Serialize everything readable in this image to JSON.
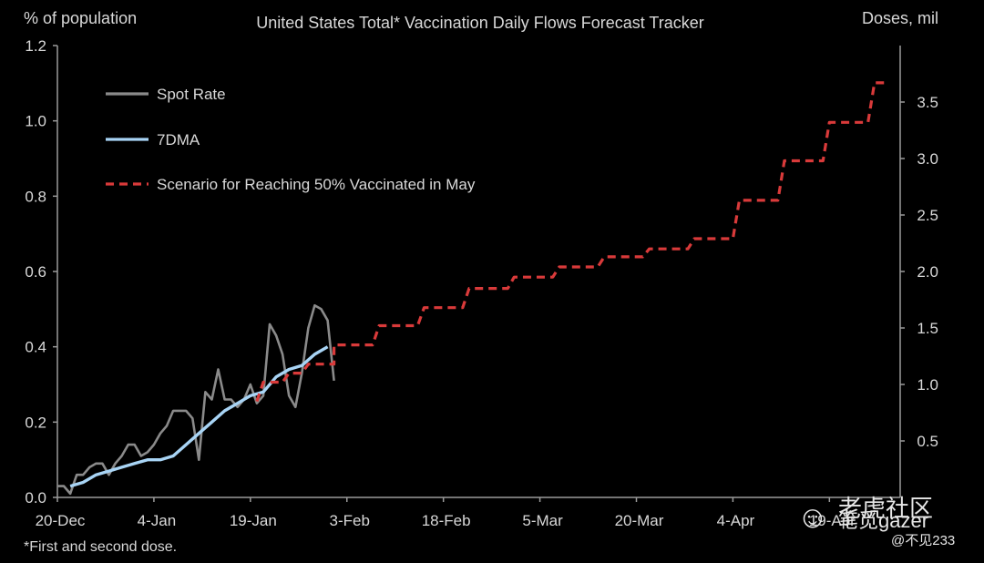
{
  "chart_data": {
    "type": "line",
    "title": "United States Total* Vaccination Daily Flows Forecast Tracker",
    "ylabel_left": "% of population",
    "ylabel_right": "Doses, mil",
    "footnote": "*First and second dose.",
    "x_ticks": [
      "20-Dec",
      "4-Jan",
      "19-Jan",
      "3-Feb",
      "18-Feb",
      "5-Mar",
      "20-Mar",
      "4-Apr",
      "19-Apr"
    ],
    "x_domain": [
      "2020-12-20",
      "2021-04-30"
    ],
    "ylim_left": [
      0,
      1.2
    ],
    "yticks_left": [
      "0.0",
      "0.2",
      "0.4",
      "0.6",
      "0.8",
      "1.0",
      "1.2"
    ],
    "ylim_right": [
      0,
      4.0
    ],
    "yticks_right": [
      "0.5",
      "1.0",
      "1.5",
      "2.0",
      "2.5",
      "3.0",
      "3.5"
    ],
    "grid": false,
    "legend_position": "top-left",
    "series": [
      {
        "name": "Spot Rate",
        "color": "#8a8a8a",
        "style": "solid",
        "axis": "left",
        "points": [
          [
            "2020-12-20",
            0.03
          ],
          [
            "2020-12-21",
            0.03
          ],
          [
            "2020-12-22",
            0.01
          ],
          [
            "2020-12-23",
            0.06
          ],
          [
            "2020-12-24",
            0.06
          ],
          [
            "2020-12-25",
            0.08
          ],
          [
            "2020-12-26",
            0.09
          ],
          [
            "2020-12-27",
            0.09
          ],
          [
            "2020-12-28",
            0.06
          ],
          [
            "2020-12-29",
            0.09
          ],
          [
            "2020-12-30",
            0.11
          ],
          [
            "2020-12-31",
            0.14
          ],
          [
            "2021-01-01",
            0.14
          ],
          [
            "2021-01-02",
            0.11
          ],
          [
            "2021-01-03",
            0.12
          ],
          [
            "2021-01-04",
            0.14
          ],
          [
            "2021-01-05",
            0.17
          ],
          [
            "2021-01-06",
            0.19
          ],
          [
            "2021-01-07",
            0.23
          ],
          [
            "2021-01-08",
            0.23
          ],
          [
            "2021-01-09",
            0.23
          ],
          [
            "2021-01-10",
            0.21
          ],
          [
            "2021-01-11",
            0.1
          ],
          [
            "2021-01-12",
            0.28
          ],
          [
            "2021-01-13",
            0.26
          ],
          [
            "2021-01-14",
            0.34
          ],
          [
            "2021-01-15",
            0.26
          ],
          [
            "2021-01-16",
            0.26
          ],
          [
            "2021-01-17",
            0.24
          ],
          [
            "2021-01-18",
            0.26
          ],
          [
            "2021-01-19",
            0.3
          ],
          [
            "2021-01-20",
            0.25
          ],
          [
            "2021-01-21",
            0.27
          ],
          [
            "2021-01-22",
            0.46
          ],
          [
            "2021-01-23",
            0.43
          ],
          [
            "2021-01-24",
            0.38
          ],
          [
            "2021-01-25",
            0.27
          ],
          [
            "2021-01-26",
            0.24
          ],
          [
            "2021-01-27",
            0.33
          ],
          [
            "2021-01-28",
            0.45
          ],
          [
            "2021-01-29",
            0.51
          ],
          [
            "2021-01-30",
            0.5
          ],
          [
            "2021-01-31",
            0.47
          ],
          [
            "2021-02-01",
            0.31
          ]
        ]
      },
      {
        "name": "7DMA",
        "color": "#a8d4f5",
        "style": "solid",
        "axis": "left",
        "points": [
          [
            "2020-12-22",
            0.03
          ],
          [
            "2020-12-24",
            0.04
          ],
          [
            "2020-12-26",
            0.06
          ],
          [
            "2020-12-28",
            0.07
          ],
          [
            "2020-12-30",
            0.08
          ],
          [
            "2021-01-01",
            0.09
          ],
          [
            "2021-01-03",
            0.1
          ],
          [
            "2021-01-05",
            0.1
          ],
          [
            "2021-01-07",
            0.11
          ],
          [
            "2021-01-09",
            0.14
          ],
          [
            "2021-01-11",
            0.17
          ],
          [
            "2021-01-13",
            0.2
          ],
          [
            "2021-01-15",
            0.23
          ],
          [
            "2021-01-17",
            0.25
          ],
          [
            "2021-01-19",
            0.27
          ],
          [
            "2021-01-21",
            0.28
          ],
          [
            "2021-01-23",
            0.32
          ],
          [
            "2021-01-25",
            0.34
          ],
          [
            "2021-01-27",
            0.35
          ],
          [
            "2021-01-29",
            0.38
          ],
          [
            "2021-01-31",
            0.4
          ]
        ]
      },
      {
        "name": "Scenario for Reaching 50% Vaccinated in May",
        "color": "#d93a3a",
        "style": "dashed",
        "axis": "right",
        "points": [
          [
            "2021-01-20",
            0.85
          ],
          [
            "2021-01-21",
            1.02
          ],
          [
            "2021-01-24",
            1.02
          ],
          [
            "2021-01-25",
            1.1
          ],
          [
            "2021-01-27",
            1.1
          ],
          [
            "2021-01-28",
            1.18
          ],
          [
            "2021-02-01",
            1.18
          ],
          [
            "2021-02-01",
            1.35
          ],
          [
            "2021-02-07",
            1.35
          ],
          [
            "2021-02-08",
            1.52
          ],
          [
            "2021-02-14",
            1.52
          ],
          [
            "2021-02-15",
            1.68
          ],
          [
            "2021-02-21",
            1.68
          ],
          [
            "2021-02-22",
            1.85
          ],
          [
            "2021-02-28",
            1.85
          ],
          [
            "2021-03-01",
            1.95
          ],
          [
            "2021-03-07",
            1.95
          ],
          [
            "2021-03-08",
            2.04
          ],
          [
            "2021-03-14",
            2.04
          ],
          [
            "2021-03-15",
            2.13
          ],
          [
            "2021-03-21",
            2.13
          ],
          [
            "2021-03-22",
            2.2
          ],
          [
            "2021-03-28",
            2.2
          ],
          [
            "2021-03-29",
            2.29
          ],
          [
            "2021-04-04",
            2.29
          ],
          [
            "2021-04-05",
            2.63
          ],
          [
            "2021-04-11",
            2.63
          ],
          [
            "2021-04-12",
            2.98
          ],
          [
            "2021-04-18",
            2.98
          ],
          [
            "2021-04-19",
            3.32
          ],
          [
            "2021-04-25",
            3.32
          ],
          [
            "2021-04-26",
            3.67
          ],
          [
            "2021-04-28",
            3.67
          ]
        ]
      }
    ]
  },
  "watermark": {
    "icon": "wechat-icon",
    "line1": "老虎社区",
    "line2": "笔觅gazer",
    "handle": "@不见233"
  }
}
